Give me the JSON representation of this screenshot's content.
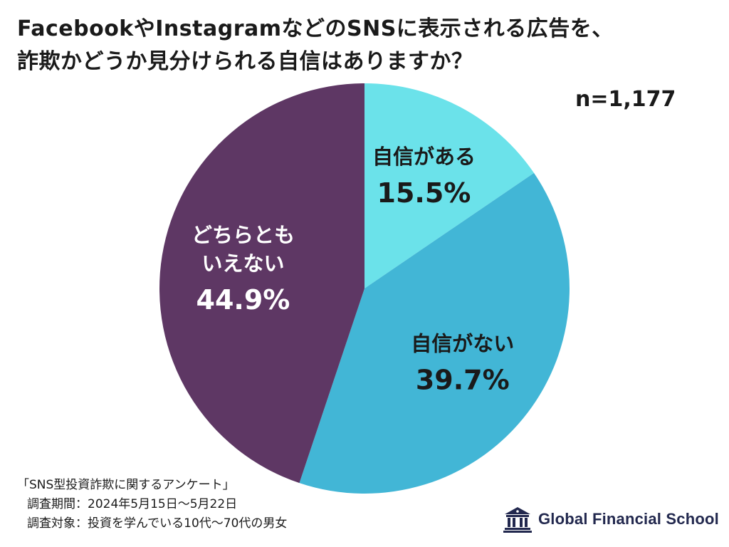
{
  "title_lines": [
    "FacebookやInstagramなどのSNSに表示される広告を、",
    "詐欺かどうか見分けられる自信はありますか？"
  ],
  "sample_size": "n=1,177",
  "chart_data": {
    "type": "pie",
    "start": "top (12 o'clock), clockwise",
    "slices": [
      {
        "label": [
          "自信がある"
        ],
        "value": 15.5,
        "value_label": "15.5%",
        "color": "#6be2ea",
        "text_color": "#1a1a1a"
      },
      {
        "label": [
          "自信がない"
        ],
        "value": 39.7,
        "value_label": "39.7%",
        "color": "#42b6d6",
        "text_color": "#1a1a1a"
      },
      {
        "label": [
          "どちらとも",
          "いえない"
        ],
        "value": 44.9,
        "value_label": "44.9%",
        "color": "#5e3764",
        "text_color": "#ffffff"
      }
    ]
  },
  "notes": {
    "survey_name": "「SNS型投資詐欺に関するアンケート」",
    "period": "調査期間：2024年5月15日～5月22日",
    "target": "調査対象：投資を学んでいる10代～70代の男女"
  },
  "logo": {
    "text": "Global Financial School",
    "icon": "school-building-icon",
    "color": "#22284e"
  }
}
